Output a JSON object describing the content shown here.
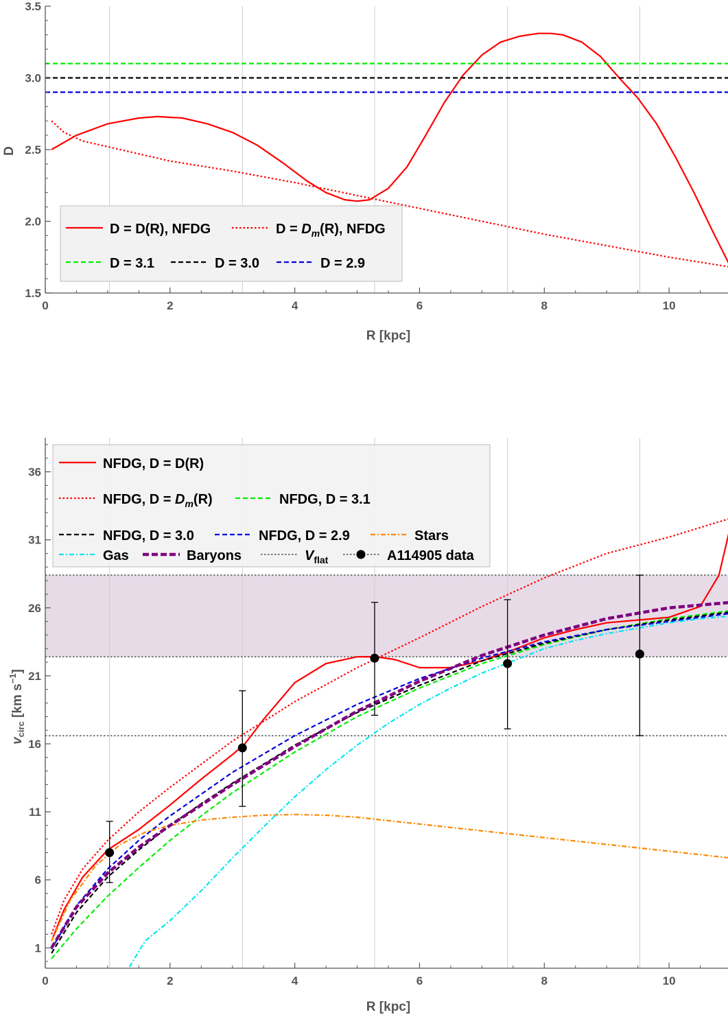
{
  "chart_data": [
    {
      "type": "line",
      "xlabel": "R [kpc]",
      "ylabel": "D",
      "xlim": [
        0,
        11
      ],
      "ylim": [
        1.5,
        3.5
      ],
      "xticks": [
        "0",
        "2",
        "4",
        "6",
        "8",
        "10"
      ],
      "yticks": [
        "1.5",
        "2.0",
        "2.5",
        "3.0",
        "3.5"
      ],
      "grid_x": [
        1.03,
        3.16,
        5.28,
        7.41,
        9.53
      ],
      "legend_placement": "bottom-left",
      "series": [
        {
          "name": "D = D(R), NFDG",
          "color": "#ff0000",
          "dash": "solid",
          "x": [
            0.1,
            0.5,
            1.0,
            1.5,
            1.8,
            2.2,
            2.6,
            3.0,
            3.4,
            3.8,
            4.2,
            4.5,
            4.8,
            5.0,
            5.2,
            5.5,
            5.8,
            6.1,
            6.4,
            6.7,
            7.0,
            7.3,
            7.6,
            7.9,
            8.1,
            8.3,
            8.6,
            8.9,
            9.2,
            9.5,
            9.8,
            10.1,
            10.4,
            10.7,
            11.0
          ],
          "y": [
            2.5,
            2.6,
            2.68,
            2.72,
            2.73,
            2.72,
            2.68,
            2.62,
            2.53,
            2.41,
            2.28,
            2.2,
            2.15,
            2.14,
            2.15,
            2.23,
            2.38,
            2.6,
            2.83,
            3.02,
            3.16,
            3.25,
            3.29,
            3.31,
            3.31,
            3.3,
            3.25,
            3.15,
            3.0,
            2.86,
            2.68,
            2.45,
            2.2,
            1.93,
            1.67
          ]
        },
        {
          "name": "D = D_m(R), NFDG",
          "color": "#ff0000",
          "dash": "dotted",
          "x": [
            0.1,
            0.3,
            0.6,
            1.0,
            2.0,
            3.0,
            4.0,
            5.0,
            6.0,
            7.0,
            8.0,
            9.0,
            10.0,
            11.0
          ],
          "y": [
            2.7,
            2.62,
            2.56,
            2.52,
            2.42,
            2.35,
            2.27,
            2.18,
            2.09,
            2.0,
            1.91,
            1.83,
            1.75,
            1.68
          ]
        },
        {
          "name": "D = 3.1",
          "color": "#00ee00",
          "dash": "dashed",
          "x": [
            0,
            11
          ],
          "y": [
            3.1,
            3.1
          ]
        },
        {
          "name": "D = 3.0",
          "color": "#000000",
          "dash": "dashed",
          "x": [
            0,
            11
          ],
          "y": [
            3.0,
            3.0
          ]
        },
        {
          "name": "D = 2.9",
          "color": "#0000dd",
          "dash": "dashed",
          "x": [
            0,
            11
          ],
          "y": [
            2.9,
            2.9
          ]
        }
      ],
      "legend_rows": [
        [
          "D = D(R), NFDG",
          "D = D_m(R), NFDG"
        ],
        [
          "D = 3.1",
          "D = 3.0",
          "D = 2.9"
        ]
      ],
      "legend_parts": {
        "l1a": "D = D(R), NFDG",
        "l1b_pre": "D = ",
        "l1b_italic": "D",
        "l1b_sub": "m",
        "l1b_post": "(R), NFDG",
        "l2a": "D = 3.1",
        "l2b": "D = 3.0",
        "l2c": "D = 2.9"
      }
    },
    {
      "type": "line",
      "xlabel": "R [kpc]",
      "ylabel_parts": {
        "v": "v",
        "sub": "circ",
        "mid": " [km s",
        "sup": "−1",
        "end": "]"
      },
      "xlim": [
        0,
        11
      ],
      "ylim": [
        -0.5,
        38.5
      ],
      "xticks": [
        "0",
        "2",
        "4",
        "6",
        "8",
        "10"
      ],
      "yticks": [
        "1",
        "6",
        "11",
        "16",
        "21",
        "26",
        "31",
        "36"
      ],
      "grid_x": [
        1.03,
        3.16,
        5.28,
        7.41,
        9.53
      ],
      "legend_placement": "top-left",
      "vflat_band": {
        "low": 22.4,
        "high": 28.4,
        "color": "#e8dbe8"
      },
      "vflat_lines": [
        28.4,
        22.4,
        16.6
      ],
      "series": [
        {
          "name": "NFDG, D = D(R)",
          "color": "#ff0000",
          "dash": "solid",
          "x": [
            0.1,
            0.3,
            0.6,
            1.0,
            1.5,
            2.0,
            2.5,
            3.0,
            3.2,
            3.5,
            4.0,
            4.5,
            5.0,
            5.3,
            5.6,
            6.0,
            6.5,
            7.0,
            7.5,
            8.0,
            8.5,
            9.0,
            9.5,
            10.0,
            10.5,
            10.8,
            11.0
          ],
          "y": [
            1.5,
            3.8,
            6.2,
            8.2,
            9.7,
            11.5,
            13.4,
            15.2,
            16.0,
            17.8,
            20.5,
            21.9,
            22.4,
            22.4,
            22.2,
            21.6,
            21.6,
            22.1,
            22.9,
            23.8,
            24.4,
            24.9,
            25.1,
            25.3,
            26.1,
            28.4,
            32.3
          ]
        },
        {
          "name": "NFDG, D = D_m(R)",
          "color": "#ff0000",
          "dash": "dotted",
          "x": [
            0.1,
            0.3,
            0.6,
            1.0,
            1.5,
            2.0,
            2.5,
            3.0,
            4.0,
            5.0,
            6.0,
            7.0,
            8.0,
            9.0,
            10.0,
            11.0
          ],
          "y": [
            2.0,
            4.5,
            6.8,
            8.9,
            11.0,
            12.8,
            14.5,
            16.2,
            19.1,
            21.6,
            23.8,
            26.1,
            28.2,
            30.0,
            31.2,
            32.6
          ]
        },
        {
          "name": "NFDG, D = 3.1",
          "color": "#00ee00",
          "dash": "dashed",
          "x": [
            0.1,
            0.5,
            1.0,
            1.5,
            2.0,
            2.5,
            3.0,
            4.0,
            5.0,
            6.0,
            7.0,
            8.0,
            9.0,
            10.0,
            11.0
          ],
          "y": [
            0.2,
            2.4,
            4.8,
            6.9,
            8.9,
            10.7,
            12.4,
            15.4,
            18.0,
            20.1,
            21.9,
            23.3,
            24.4,
            25.2,
            25.8
          ]
        },
        {
          "name": "NFDG, D = 3.0",
          "color": "#000000",
          "dash": "dashed",
          "x": [
            0.1,
            0.5,
            1.0,
            1.5,
            2.0,
            2.5,
            3.0,
            4.0,
            5.0,
            6.0,
            7.0,
            8.0,
            9.0,
            10.0,
            11.0
          ],
          "y": [
            0.6,
            3.6,
            6.2,
            8.2,
            10.0,
            11.6,
            13.1,
            15.9,
            18.3,
            20.3,
            22.1,
            23.4,
            24.4,
            25.1,
            25.7
          ]
        },
        {
          "name": "NFDG, D = 2.9",
          "color": "#0000dd",
          "dash": "dashed",
          "x": [
            0.1,
            0.5,
            1.0,
            1.5,
            2.0,
            2.5,
            3.0,
            4.0,
            5.0,
            6.0,
            7.0,
            8.0,
            9.0,
            10.0,
            11.0
          ],
          "y": [
            0.9,
            4.1,
            6.8,
            8.9,
            10.7,
            12.3,
            13.9,
            16.6,
            18.9,
            20.8,
            22.3,
            23.5,
            24.4,
            25.0,
            25.6
          ]
        },
        {
          "name": "Stars",
          "color": "#ff8800",
          "dash": "dashdot",
          "x": [
            0.1,
            0.4,
            0.8,
            1.2,
            1.6,
            2.0,
            2.5,
            3.0,
            3.5,
            4.0,
            4.5,
            5.0,
            6.0,
            7.0,
            8.0,
            9.0,
            10.0,
            11.0
          ],
          "y": [
            1.5,
            4.5,
            7.0,
            8.6,
            9.5,
            10.0,
            10.4,
            10.6,
            10.75,
            10.8,
            10.75,
            10.6,
            10.1,
            9.6,
            9.1,
            8.6,
            8.1,
            7.6
          ]
        },
        {
          "name": "Gas",
          "color": "#00e5ee",
          "dash": "dashdot",
          "x": [
            1.35,
            1.6,
            2.0,
            2.5,
            3.0,
            3.5,
            4.0,
            4.5,
            5.0,
            5.5,
            6.0,
            6.5,
            7.0,
            7.5,
            8.0,
            8.5,
            9.0,
            9.5,
            10.0,
            10.5,
            11.0
          ],
          "y": [
            -0.4,
            1.5,
            3.0,
            5.2,
            7.6,
            9.9,
            12.1,
            14.1,
            15.9,
            17.5,
            18.9,
            20.1,
            21.2,
            22.1,
            23.0,
            23.6,
            24.1,
            24.5,
            24.9,
            25.2,
            25.4
          ]
        },
        {
          "name": "Baryons",
          "color": "#7f007f",
          "dash": "thickdash",
          "x": [
            0.1,
            0.5,
            1.0,
            1.5,
            2.0,
            2.5,
            3.0,
            4.0,
            5.0,
            6.0,
            7.0,
            8.0,
            9.0,
            10.0,
            11.0
          ],
          "y": [
            1.0,
            4.0,
            6.5,
            8.4,
            10.0,
            11.5,
            13.0,
            15.8,
            18.4,
            20.6,
            22.5,
            24.0,
            25.2,
            26.0,
            26.4
          ]
        }
      ],
      "points": {
        "name": "A114905 data",
        "x": [
          1.03,
          3.16,
          5.28,
          7.41,
          9.53
        ],
        "y": [
          8.0,
          15.7,
          22.3,
          21.9,
          22.6
        ],
        "err_low": [
          5.8,
          11.4,
          18.1,
          17.1,
          16.6
        ],
        "err_high": [
          10.3,
          19.9,
          26.4,
          26.6,
          28.4
        ]
      },
      "legend_rows": [
        [
          "NFDG, D = D(R)"
        ],
        [
          "NFDG, D = D_m(R)",
          "NFDG, D = 3.1"
        ],
        [
          "NFDG, D = 3.0",
          "NFDG, D = 2.9",
          "Stars"
        ],
        [
          "Gas",
          "Baryons",
          "V_flat",
          "A114905 data"
        ]
      ],
      "legend_parts": {
        "l1a": "NFDG, D = D(R)",
        "l2a_pre": "NFDG, D = ",
        "l2a_italic": "D",
        "l2a_sub": "m",
        "l2a_post": "(R)",
        "l2b": "NFDG, D = 3.1",
        "l3a": "NFDG, D = 3.0",
        "l3b": "NFDG, D = 2.9",
        "l3c": "Stars",
        "l4a": "Gas",
        "l4b": "Baryons",
        "l4c_italic": "V",
        "l4c_sub": "flat",
        "l4d": "A114905 data"
      }
    }
  ]
}
